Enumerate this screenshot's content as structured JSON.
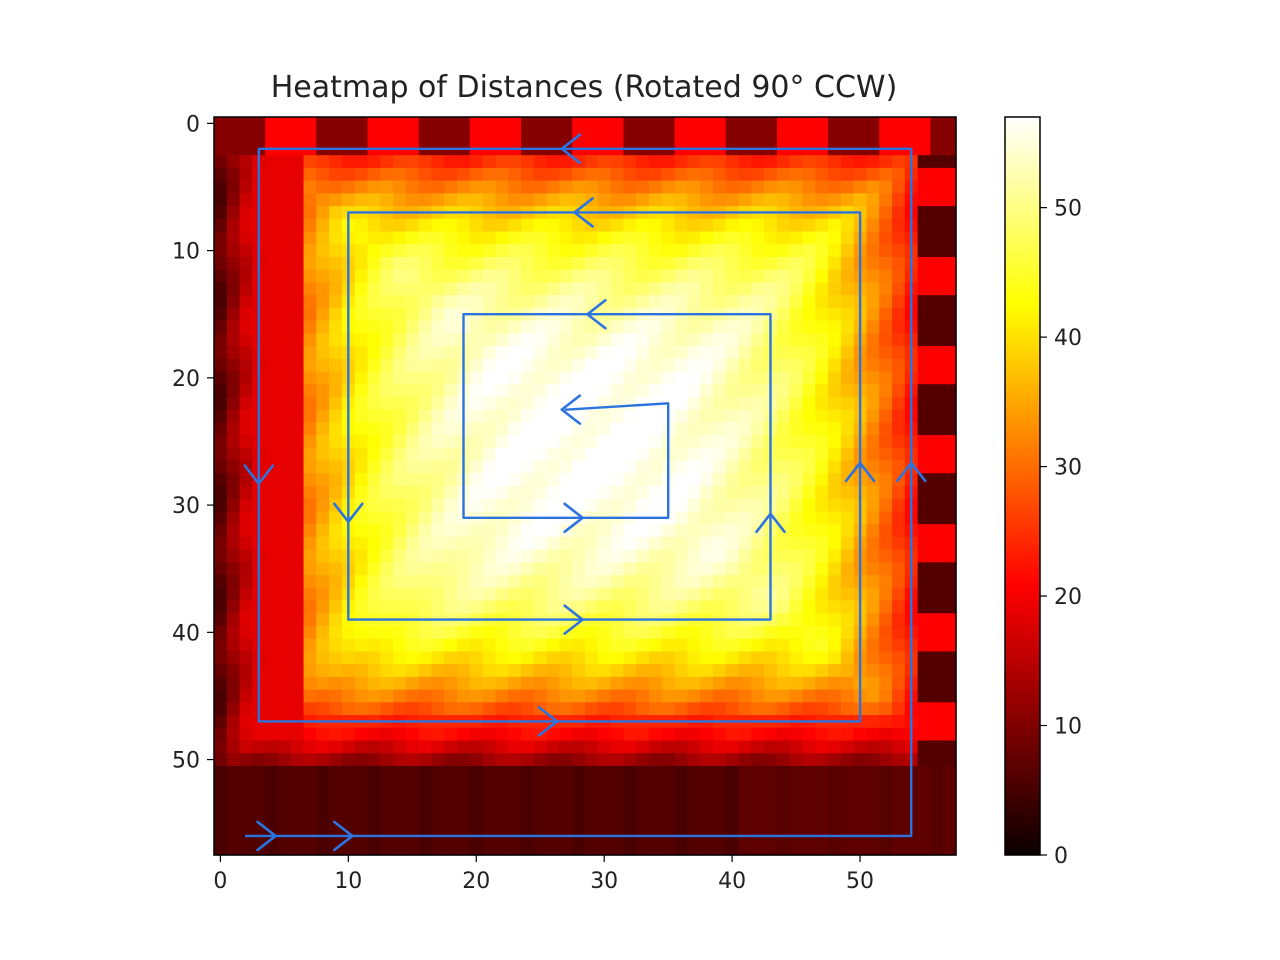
{
  "chart_data": {
    "type": "heatmap",
    "title": "Heatmap of Distances (Rotated 90° CCW)",
    "xlabel": "",
    "ylabel": "",
    "grid": false,
    "colormap": "hot",
    "colorbar_range": [
      0,
      57
    ],
    "x_ticks": [
      0,
      10,
      20,
      30,
      40,
      50
    ],
    "y_ticks": [
      0,
      10,
      20,
      30,
      40,
      50
    ],
    "colorbar_ticks": [
      0,
      10,
      20,
      30,
      40,
      50
    ],
    "grid_size": 58,
    "annotations": {
      "color": "#2b74e0",
      "description": "hand-drawn path with direction arrows",
      "path_points": [
        [
          2,
          56
        ],
        [
          54,
          56
        ],
        [
          54,
          2
        ],
        [
          3,
          2
        ],
        [
          3,
          47
        ],
        [
          50,
          47
        ],
        [
          50,
          7
        ],
        [
          10,
          7
        ],
        [
          10,
          39
        ],
        [
          43,
          39
        ],
        [
          43,
          15
        ],
        [
          19,
          15
        ],
        [
          19,
          31
        ],
        [
          35,
          31
        ],
        [
          35,
          22
        ],
        [
          27,
          22.5
        ]
      ]
    }
  }
}
